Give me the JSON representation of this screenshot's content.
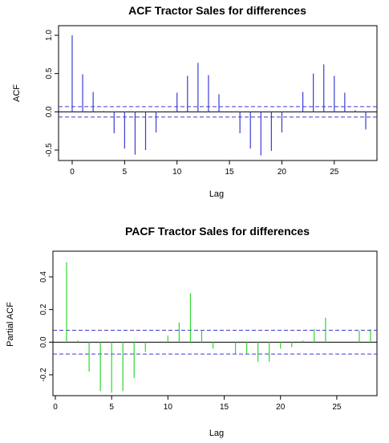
{
  "chart_data": [
    {
      "type": "bar",
      "title": "ACF Tractor Sales for differences",
      "xlabel": "Lag",
      "ylabel": "ACF",
      "xlim": [
        0,
        28
      ],
      "ylim": [
        -0.6,
        1.0
      ],
      "xticks": [
        "0",
        "5",
        "10",
        "15",
        "20",
        "25"
      ],
      "yticks": [
        "-0.5",
        "0.0",
        "0.5",
        "1.0"
      ],
      "bar_color": "#3b3bd6",
      "ci_color": "#3b3bd6",
      "ci": 0.068,
      "lags": [
        0,
        1,
        2,
        3,
        4,
        5,
        6,
        7,
        8,
        9,
        10,
        11,
        12,
        13,
        14,
        15,
        16,
        17,
        18,
        19,
        20,
        21,
        22,
        23,
        24,
        25,
        26,
        27,
        28
      ],
      "values": [
        1.0,
        0.49,
        0.26,
        0.01,
        -0.28,
        -0.48,
        -0.56,
        -0.5,
        -0.27,
        0.0,
        0.25,
        0.47,
        0.64,
        0.48,
        0.23,
        0.0,
        -0.28,
        -0.48,
        -0.57,
        -0.51,
        -0.27,
        0.0,
        0.26,
        0.5,
        0.62,
        0.47,
        0.25,
        0.02,
        -0.23
      ],
      "grid": false
    },
    {
      "type": "bar",
      "title": "PACF Tractor Sales for differences",
      "xlabel": "Lag",
      "ylabel": "Partial ACF",
      "xlim": [
        0,
        28
      ],
      "ylim": [
        -0.32,
        0.5
      ],
      "xticks": [
        "0",
        "5",
        "10",
        "15",
        "20",
        "25"
      ],
      "yticks": [
        "-0.2",
        "0.0",
        "0.2",
        "0.4"
      ],
      "bar_color": "#2fd62f",
      "ci_color": "#3b3bd6",
      "ci": 0.073,
      "lags": [
        1,
        2,
        3,
        4,
        5,
        6,
        7,
        8,
        9,
        10,
        11,
        12,
        13,
        14,
        15,
        16,
        17,
        18,
        19,
        20,
        21,
        22,
        23,
        24,
        25,
        26,
        27,
        28
      ],
      "values": [
        0.49,
        0.01,
        -0.18,
        -0.3,
        -0.31,
        -0.3,
        -0.22,
        -0.06,
        0.0,
        0.04,
        0.12,
        0.3,
        0.07,
        -0.04,
        0.0,
        -0.07,
        -0.07,
        -0.12,
        -0.12,
        -0.04,
        -0.03,
        0.01,
        0.08,
        0.15,
        0.0,
        0.0,
        0.07,
        0.08
      ],
      "grid": false
    }
  ]
}
